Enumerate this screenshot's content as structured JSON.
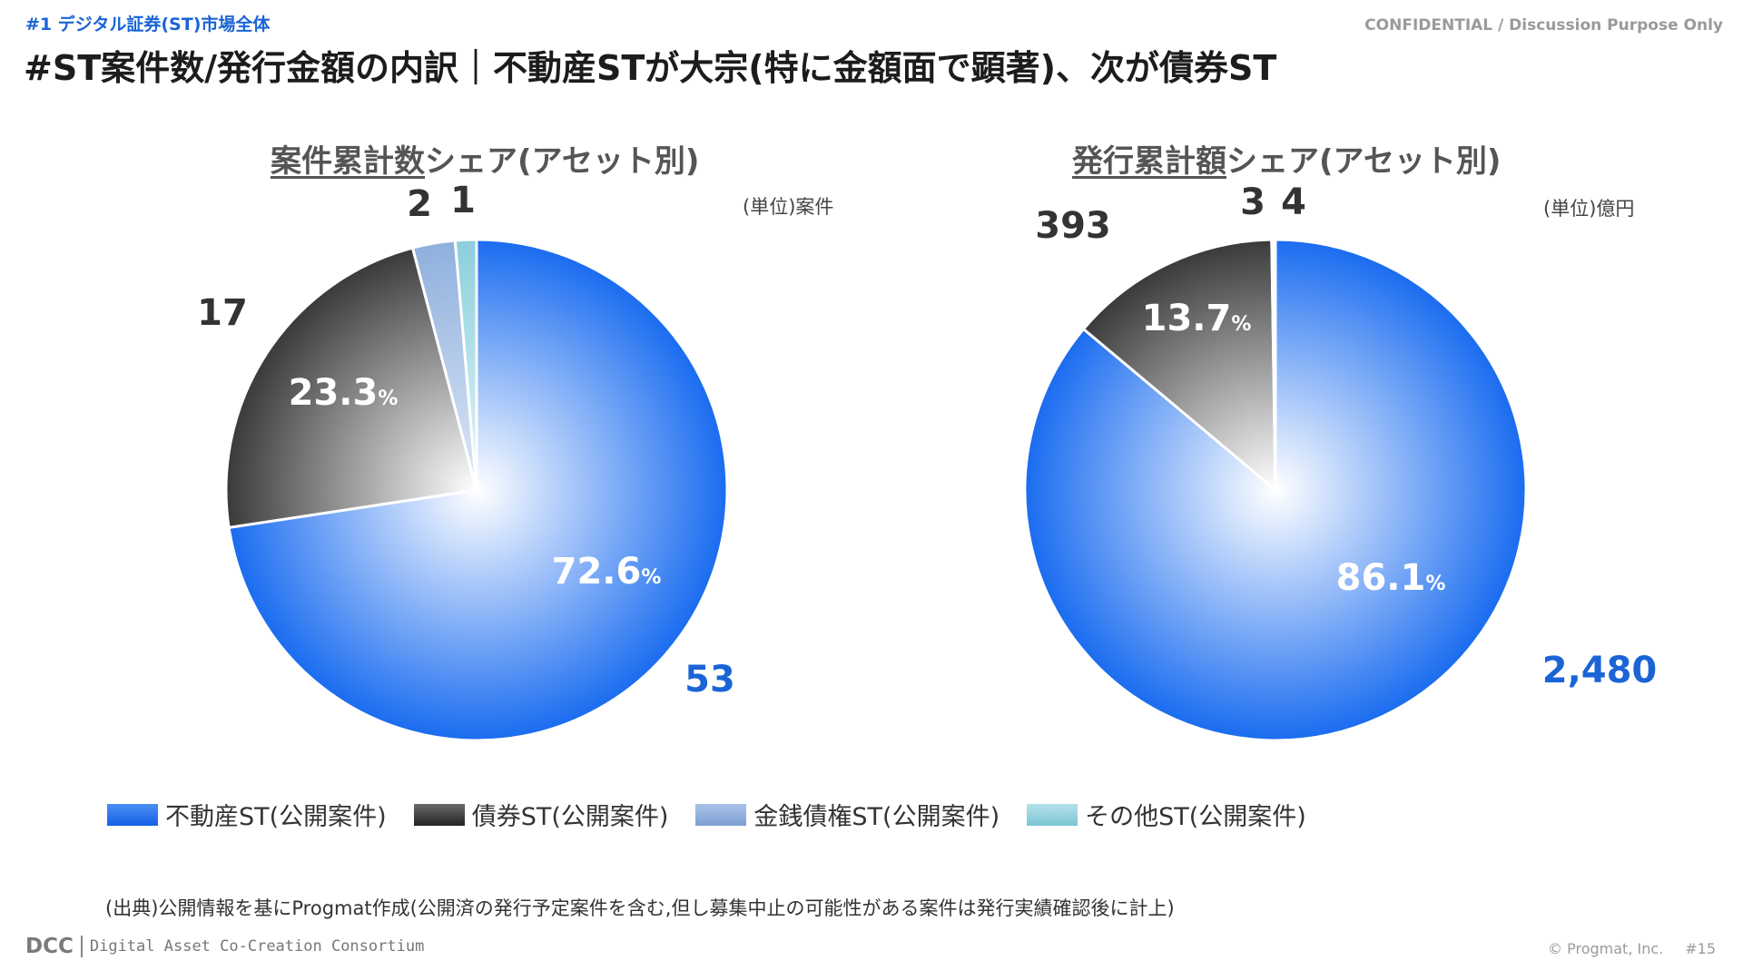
{
  "header": {
    "section_tag": "#1 デジタル証券(ST)市場全体",
    "confidential": "CONFIDENTIAL / Discussion Purpose Only",
    "title": "#ST案件数/発行金額の内訳｜不動産STが大宗(特に金額面で顕著)、次が債券ST"
  },
  "chart_data": [
    {
      "type": "pie",
      "title_underlined": "案件累計数",
      "title_rest": "シェア(アセット別)",
      "unit": "(単位)案件",
      "categories": [
        "不動産ST(公開案件)",
        "債券ST(公開案件)",
        "金銭債権ST(公開案件)",
        "その他ST(公開案件)"
      ],
      "values": [
        53,
        17,
        2,
        1
      ],
      "value_labels": [
        "53",
        "17",
        "2",
        "1"
      ],
      "percent_labels": [
        "72.6",
        "23.3",
        "",
        ""
      ],
      "percent_sign": "%",
      "colors": [
        "#1a6cf0",
        "#3a3a3a",
        "#8fb0dd",
        "#8ccfdc"
      ],
      "start_angle": 0,
      "direction": "clockwise"
    },
    {
      "type": "pie",
      "title_underlined": "発行累計額",
      "title_rest": "シェア(アセット別)",
      "unit": "(単位)億円",
      "categories": [
        "不動産ST(公開案件)",
        "債券ST(公開案件)",
        "金銭債権ST(公開案件)",
        "その他ST(公開案件)"
      ],
      "values": [
        2480,
        393,
        3,
        4
      ],
      "value_labels": [
        "2,480",
        "393",
        "3",
        "4"
      ],
      "percent_labels": [
        "86.1",
        "13.7",
        "",
        ""
      ],
      "percent_sign": "%",
      "colors": [
        "#1a6cf0",
        "#3a3a3a",
        "#8fb0dd",
        "#8ccfdc"
      ],
      "start_angle": 0,
      "direction": "clockwise"
    }
  ],
  "legend": {
    "placement": "bottom",
    "items": [
      {
        "label": "不動産ST(公開案件)",
        "color": "#1a6cf0"
      },
      {
        "label": "債券ST(公開案件)",
        "color": "#3a3a3a"
      },
      {
        "label": "金銭債権ST(公開案件)",
        "color": "#8fb0dd"
      },
      {
        "label": "その他ST(公開案件)",
        "color": "#8ccfdc"
      }
    ]
  },
  "footer": {
    "source_note": "(出典)公開情報を基にProgmat作成(公開済の発行予定案件を含む,但し募集中止の可能性がある案件は発行実績確認後に計上)",
    "logo_text": "DCC",
    "consortium": "Digital Asset Co-Creation Consortium",
    "copyright": "© Progmat, Inc.",
    "page_number": "#15"
  }
}
